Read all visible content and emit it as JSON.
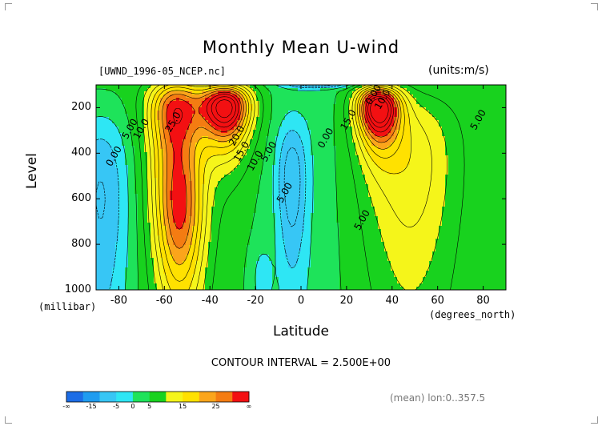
{
  "title": "Monthly Mean U-wind",
  "file_label": "[UWND_1996-05_NCEP.nc]",
  "units_label": "(units:m/s)",
  "contour_interval": "CONTOUR INTERVAL = 2.500E+00",
  "mean_label": "(mean) lon:0..357.5",
  "chart_data": {
    "type": "heatmap",
    "title": "Monthly Mean U-wind",
    "xlabel": "Latitude",
    "xlabel_unit": "(degrees_north)",
    "ylabel": "Level",
    "ylabel_unit": "(millibar)",
    "xlim": [
      -90,
      90
    ],
    "ylim": [
      1000,
      100
    ],
    "x_ticks": [
      "-80",
      "-60",
      "-40",
      "-20",
      "0",
      "20",
      "40",
      "60",
      "80"
    ],
    "x_tick_values": [
      -80,
      -60,
      -40,
      -20,
      0,
      20,
      40,
      60,
      80
    ],
    "y_ticks": [
      "200",
      "400",
      "600",
      "800",
      "1000"
    ],
    "y_tick_values": [
      200,
      400,
      600,
      800,
      1000
    ],
    "contour_labels": [
      {
        "text": "25.0",
        "lat": -55,
        "lev": 270
      },
      {
        "text": "20.0",
        "lat": -27,
        "lev": 330
      },
      {
        "text": "15.0",
        "lat": -25,
        "lev": 400
      },
      {
        "text": "10.0",
        "lat": -69,
        "lev": 300
      },
      {
        "text": "10.0",
        "lat": -19,
        "lev": 440
      },
      {
        "text": "5.00",
        "lat": -74,
        "lev": 300
      },
      {
        "text": "5.00",
        "lat": -13,
        "lev": 400
      },
      {
        "text": "0.00",
        "lat": -81,
        "lev": 420
      },
      {
        "text": "0.00",
        "lat": 12,
        "lev": 340
      },
      {
        "text": "0.00",
        "lat": 33,
        "lev": 150
      },
      {
        "text": "10.0",
        "lat": 37,
        "lev": 170
      },
      {
        "text": "15.0",
        "lat": 22,
        "lev": 260
      },
      {
        "text": "5.00",
        "lat": 79,
        "lev": 260
      },
      {
        "text": "5.00",
        "lat": 28,
        "lev": 700
      },
      {
        "text": "5.00",
        "lat": -6,
        "lev": 580
      }
    ],
    "colorbar": {
      "colors": [
        "#1c6de6",
        "#1f9cf0",
        "#37c6f5",
        "#2ee6f4",
        "#1ee35a",
        "#18d21e",
        "#f5f51a",
        "#ffe100",
        "#fba51b",
        "#f47c12",
        "#f31012"
      ],
      "tick_labels": [
        "-∞",
        "-15",
        "-5",
        "0",
        "5",
        "15",
        "25",
        "∞"
      ]
    }
  }
}
